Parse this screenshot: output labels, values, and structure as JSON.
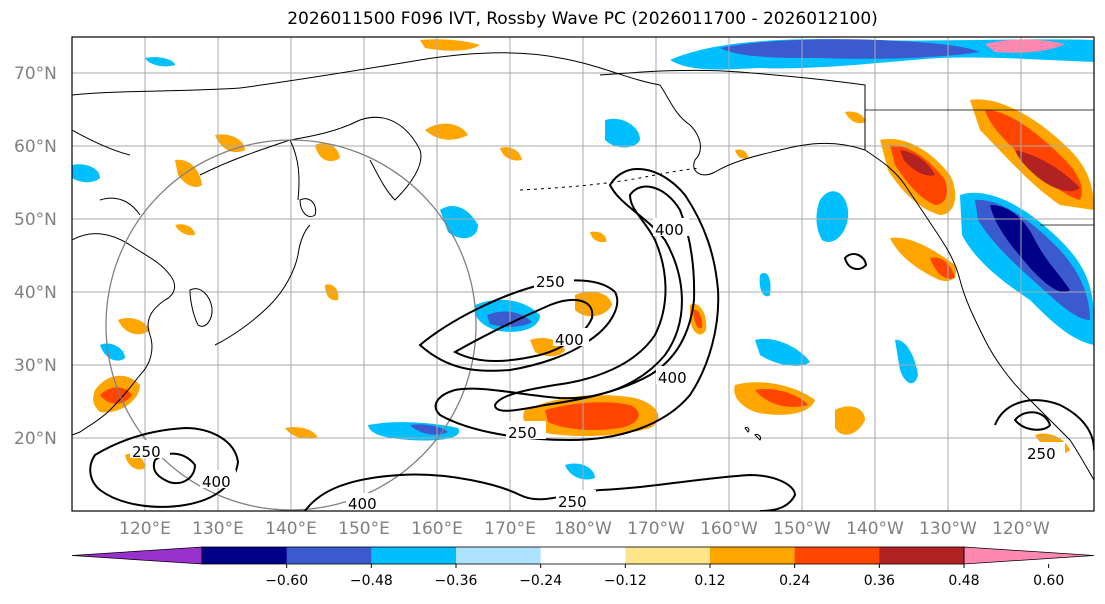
{
  "title": "2026011500 F096 IVT, Rossby Wave PC (2026011700 - 2026012100)",
  "latitude_labels": [
    "70°N",
    "60°N",
    "50°N",
    "40°N",
    "30°N",
    "20°N"
  ],
  "longitude_labels": [
    "120°E",
    "130°E",
    "140°E",
    "150°E",
    "160°E",
    "170°E",
    "180°W",
    "170°W",
    "160°W",
    "150°W",
    "140°W",
    "130°W",
    "120°W"
  ],
  "contour_labels": [
    "250",
    "400",
    "400",
    "250",
    "400",
    "250",
    "400",
    "250",
    "400",
    "250"
  ],
  "colorbar": {
    "bins": [
      {
        "color": "#9932cc"
      },
      {
        "color": "#000088"
      },
      {
        "color": "#3a5acd"
      },
      {
        "color": "#00bfff"
      },
      {
        "color": "#ade3ff"
      },
      {
        "color": "#ffffff"
      },
      {
        "color": "#ffe58a"
      },
      {
        "color": "#ffa500"
      },
      {
        "color": "#ff4500"
      },
      {
        "color": "#b22222"
      },
      {
        "color": "#ff88b0"
      }
    ],
    "tick_labels": [
      "−0.60",
      "−0.48",
      "−0.36",
      "−0.24",
      "−0.12",
      "0.12",
      "0.24",
      "0.36",
      "0.48",
      "0.60"
    ]
  },
  "colors": {
    "orange": "#ffa500",
    "red": "#ff4500",
    "darkred": "#b22222",
    "lightblue": "#00bfff",
    "blue": "#3a5acd",
    "navy": "#000088",
    "yellow": "#ffe58a"
  }
}
